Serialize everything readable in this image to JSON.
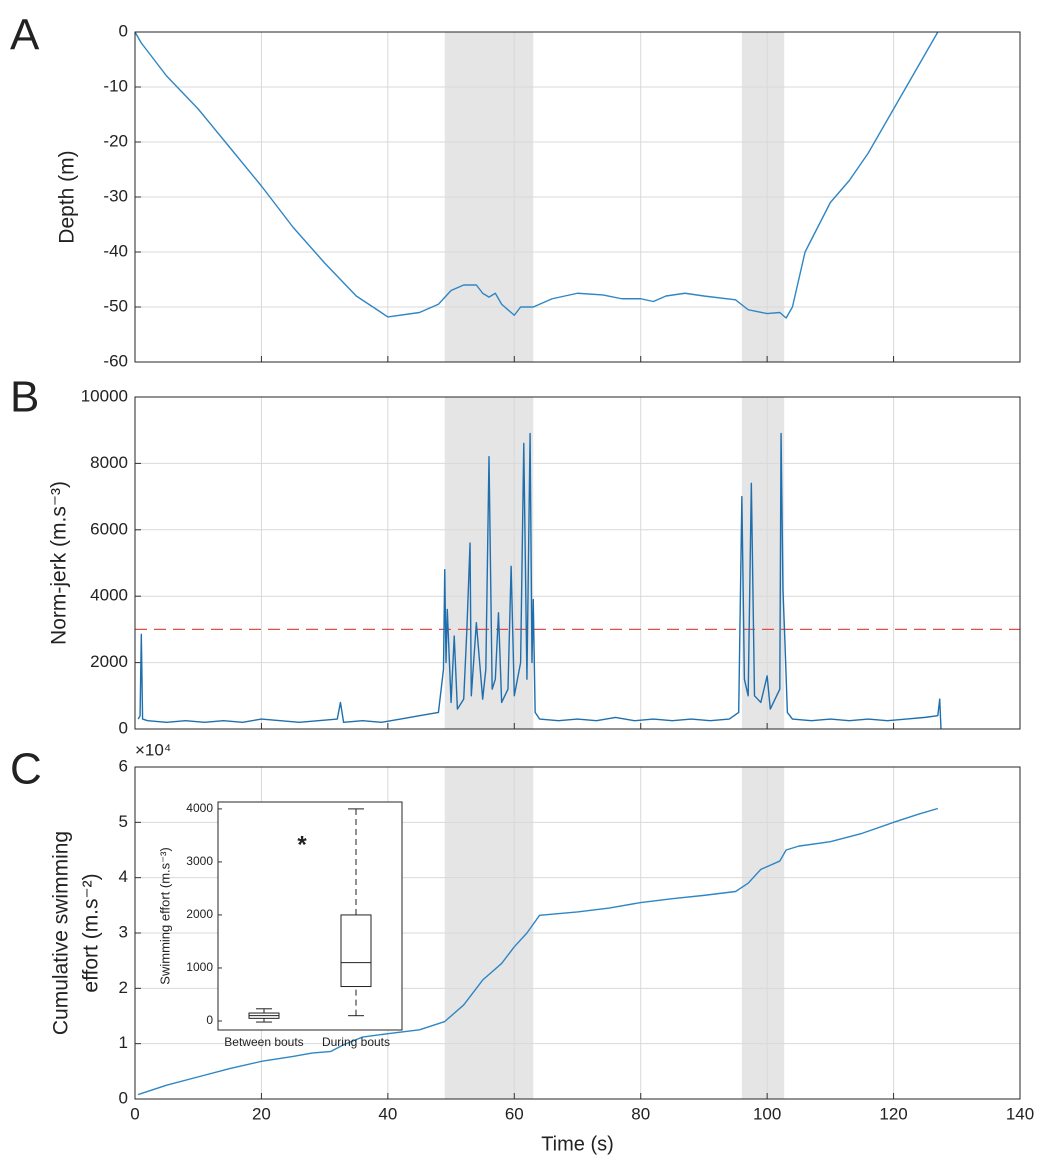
{
  "chart_data": [
    {
      "type": "line",
      "label": "A",
      "ylabel": [
        "Depth (m)"
      ],
      "xlim": [
        0,
        140
      ],
      "xticks": [
        0,
        20,
        40,
        60,
        80,
        100,
        120,
        140
      ],
      "show_xtick_labels": false,
      "ylim": [
        -60,
        0
      ],
      "yticks": [
        -60,
        -50,
        -40,
        -30,
        -20,
        -10,
        0
      ],
      "grid": true,
      "shaded_spans": [
        [
          49,
          63
        ],
        [
          96,
          102.7
        ]
      ],
      "shade_color": "#e5e5e5",
      "series": [
        {
          "color": "#2f86c4",
          "x": [
            0,
            1,
            5,
            10,
            15,
            20,
            25,
            30,
            35,
            40,
            45,
            48,
            50,
            52,
            54,
            55,
            56,
            57,
            58,
            60,
            61,
            63,
            66,
            70,
            74,
            77,
            80,
            82,
            84,
            87,
            90,
            95,
            97,
            100,
            102,
            103,
            104,
            106,
            110,
            113,
            116,
            120,
            124,
            127
          ],
          "values": [
            0,
            -2,
            -8,
            -14,
            -21,
            -28,
            -35.5,
            -42,
            -48,
            -51.8,
            -51,
            -49.5,
            -47,
            -46,
            -46,
            -47.5,
            -48.2,
            -47.5,
            -49.5,
            -51.5,
            -50,
            -50,
            -48.5,
            -47.5,
            -47.8,
            -48.5,
            -48.5,
            -49,
            -48,
            -47.5,
            -48,
            -48.7,
            -50.5,
            -51.2,
            -51,
            -52,
            -50,
            -40,
            -31,
            -27,
            -22,
            -14,
            -6,
            0
          ]
        }
      ]
    },
    {
      "type": "line",
      "label": "B",
      "ylabel": [
        "Norm-jerk  (m.s⁻³)"
      ],
      "xlim": [
        0,
        140
      ],
      "xticks": [
        0,
        20,
        40,
        60,
        80,
        100,
        120,
        140
      ],
      "show_xtick_labels": false,
      "ylim": [
        0,
        10000
      ],
      "yticks": [
        0,
        2000,
        4000,
        6000,
        8000,
        10000
      ],
      "grid": true,
      "shaded_spans": [
        [
          49,
          63
        ],
        [
          96,
          102.7
        ]
      ],
      "shade_color": "#e5e5e5",
      "reference_lines": [
        {
          "value": 3000,
          "color": "#e0504a"
        }
      ],
      "series": [
        {
          "color": "#1f6fae",
          "x": [
            0.5,
            0.8,
            1,
            1.2,
            2,
            5,
            8,
            11,
            14,
            17,
            20,
            23,
            26,
            29,
            32,
            32.5,
            33,
            36,
            39,
            42,
            45,
            48,
            48.8,
            49,
            49.2,
            49.4,
            50,
            50.5,
            51,
            52,
            52.5,
            53,
            53.2,
            54,
            55,
            55.5,
            56,
            56.5,
            57,
            57.5,
            58,
            59,
            59.5,
            60,
            61,
            61.5,
            62,
            62.5,
            62.8,
            63,
            63.3,
            64,
            67,
            70,
            73,
            76,
            79,
            82,
            85,
            88,
            91,
            94,
            95.5,
            96,
            96.4,
            97,
            97.5,
            98,
            99,
            100,
            100.5,
            101,
            102,
            102.2,
            102.5,
            102.8,
            103.2,
            104,
            107,
            110,
            113,
            116,
            119,
            122,
            125,
            127,
            127.3,
            127.5
          ],
          "values": [
            300,
            400,
            2850,
            300,
            250,
            200,
            250,
            200,
            250,
            200,
            300,
            250,
            200,
            250,
            300,
            800,
            200,
            250,
            200,
            300,
            400,
            500,
            1800,
            4800,
            2000,
            3600,
            800,
            2800,
            600,
            900,
            3000,
            5600,
            1000,
            3200,
            900,
            1800,
            8200,
            1200,
            1500,
            3500,
            800,
            1200,
            4900,
            1000,
            2000,
            8600,
            1500,
            8900,
            2000,
            3900,
            500,
            300,
            250,
            300,
            250,
            350,
            250,
            300,
            250,
            300,
            250,
            300,
            500,
            7000,
            1500,
            1000,
            7400,
            1000,
            800,
            1600,
            600,
            800,
            1200,
            8900,
            4200,
            2700,
            500,
            300,
            250,
            300,
            250,
            300,
            250,
            300,
            350,
            400,
            900,
            0
          ]
        }
      ]
    },
    {
      "type": "line",
      "label": "C",
      "ylabel": [
        "Cumulative swimming",
        "effort (m.s⁻²)"
      ],
      "xlabel": "Time (s)",
      "y_exponent_label": "×10⁴",
      "xlim": [
        0,
        140
      ],
      "xticks": [
        0,
        20,
        40,
        60,
        80,
        100,
        120,
        140
      ],
      "show_xtick_labels": true,
      "ylim": [
        0,
        60000
      ],
      "yticks": [
        {
          "value": 0,
          "label": "0"
        },
        {
          "value": 10000,
          "label": "1"
        },
        {
          "value": 20000,
          "label": "2"
        },
        {
          "value": 30000,
          "label": "3"
        },
        {
          "value": 40000,
          "label": "4"
        },
        {
          "value": 50000,
          "label": "5"
        },
        {
          "value": 60000,
          "label": "6"
        }
      ],
      "grid": true,
      "shaded_spans": [
        [
          49,
          63
        ],
        [
          96,
          102.7
        ]
      ],
      "shade_color": "#e5e5e5",
      "series": [
        {
          "color": "#2f86c4",
          "x": [
            0.5,
            5,
            10,
            15,
            20,
            25,
            28,
            31,
            33,
            36,
            40,
            45,
            49,
            52,
            55,
            58,
            60,
            62,
            64,
            70,
            75,
            80,
            85,
            90,
            95,
            97,
            99,
            102,
            103,
            105,
            110,
            115,
            120,
            124,
            127
          ],
          "values": [
            800,
            2500,
            4000,
            5500,
            6800,
            7700,
            8300,
            8600,
            9800,
            11200,
            11800,
            12500,
            14000,
            17000,
            21500,
            24500,
            27500,
            30000,
            33200,
            33800,
            34500,
            35500,
            36200,
            36800,
            37500,
            39000,
            41500,
            43000,
            45000,
            45700,
            46500,
            48000,
            50000,
            51500,
            52500
          ]
        }
      ]
    },
    {
      "type": "box",
      "ylabel": "Swimming effort (m.s⁻³)",
      "annotation": "*",
      "categories": [
        "Between bouts",
        "During bouts"
      ],
      "ylim": [
        -170,
        4130
      ],
      "yticks": [
        0,
        1000,
        2000,
        3000,
        4000
      ],
      "boxes": [
        {
          "whisker_low": -20,
          "q1": 50,
          "median": 100,
          "q3": 150,
          "whisker_high": 230
        },
        {
          "whisker_low": 100,
          "q1": 650,
          "median": 1100,
          "q3": 2000,
          "whisker_high": 4000
        }
      ]
    }
  ]
}
